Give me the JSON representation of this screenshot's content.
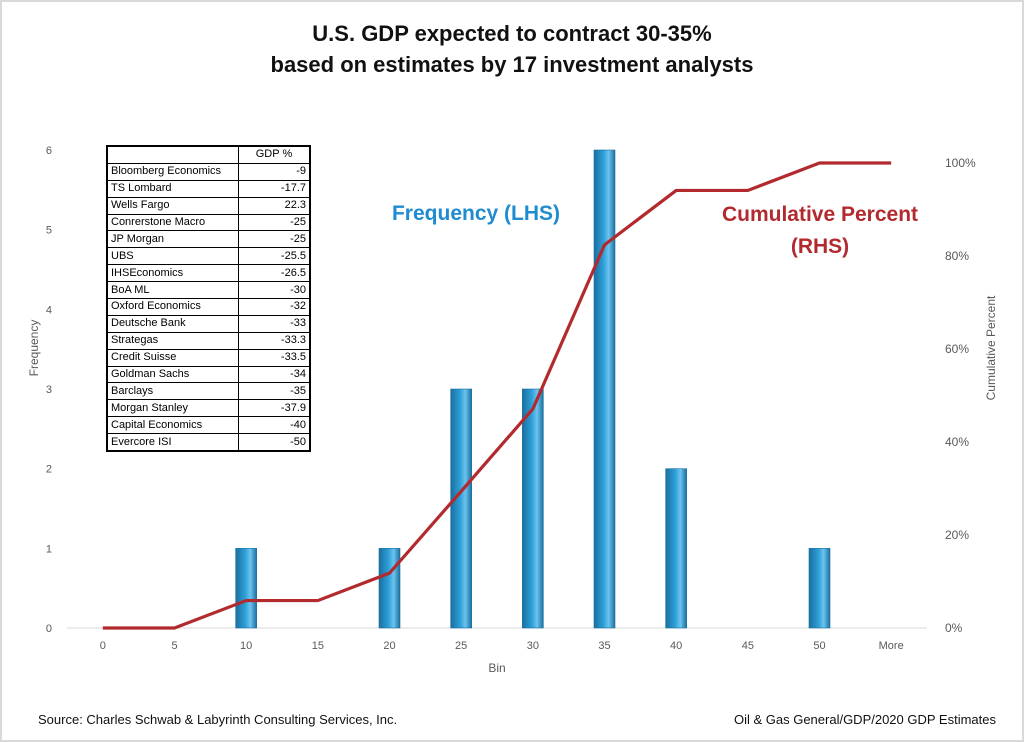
{
  "title_line1": "U.S. GDP expected to contract 30-35%",
  "title_line2": "based on estimates by 17 investment analysts",
  "annotations": {
    "frequency": "Frequency (LHS)",
    "cumulative_line1": "Cumulative Percent",
    "cumulative_line2": "(RHS)"
  },
  "colors": {
    "bar": "#2e9fd8",
    "bar_dark": "#1a6f9f",
    "line": "#b22a2e",
    "annotation_blue": "#1f8bd0"
  },
  "table": {
    "header": "GDP %",
    "rows": [
      {
        "name": "Bloomberg Economics",
        "value": "-9"
      },
      {
        "name": "TS Lombard",
        "value": "-17.7"
      },
      {
        "name": "Wells Fargo",
        "value": "22.3"
      },
      {
        "name": "Conrerstone Macro",
        "value": "-25"
      },
      {
        "name": "JP Morgan",
        "value": "-25"
      },
      {
        "name": "UBS",
        "value": "-25.5"
      },
      {
        "name": "IHSEconomics",
        "value": "-26.5"
      },
      {
        "name": "BoA ML",
        "value": "-30"
      },
      {
        "name": "Oxford Economics",
        "value": "-32"
      },
      {
        "name": "Deutsche Bank",
        "value": "-33"
      },
      {
        "name": "Strategas",
        "value": "-33.3"
      },
      {
        "name": "Credit Suisse",
        "value": "-33.5"
      },
      {
        "name": "Goldman Sachs",
        "value": "-34"
      },
      {
        "name": "Barclays",
        "value": "-35"
      },
      {
        "name": "Morgan Stanley",
        "value": "-37.9"
      },
      {
        "name": "Capital Economics",
        "value": "-40"
      },
      {
        "name": "Evercore ISI",
        "value": "-50"
      }
    ]
  },
  "footer": {
    "source": "Source: Charles Schwab & Labyrinth Consulting Services, Inc.",
    "credit": "Oil & Gas General/GDP/2020 GDP Estimates"
  },
  "chart_data": {
    "type": "bar",
    "title": "U.S. GDP expected to contract 30-35% based on estimates by 17 investment analysts",
    "categories": [
      "0",
      "5",
      "10",
      "15",
      "20",
      "25",
      "30",
      "35",
      "40",
      "45",
      "50",
      "More"
    ],
    "xlabel": "Bin",
    "ylabel": "Frequency",
    "y2label": "Cumulative Percent",
    "ylim": [
      0,
      6
    ],
    "y2lim": [
      0,
      100
    ],
    "yticks": [
      "0",
      "1",
      "2",
      "3",
      "4",
      "5",
      "6"
    ],
    "y2ticks": [
      "0%",
      "20%",
      "40%",
      "60%",
      "80%",
      "100%"
    ],
    "series": [
      {
        "name": "Frequency (LHS)",
        "type": "bar",
        "values": [
          0,
          0,
          1,
          0,
          1,
          3,
          3,
          6,
          2,
          0,
          1,
          0
        ]
      },
      {
        "name": "Cumulative Percent (RHS)",
        "type": "line",
        "axis": "right",
        "values": [
          0,
          0,
          5.9,
          5.9,
          11.8,
          29.4,
          47.1,
          82.4,
          94.1,
          94.1,
          100,
          100
        ]
      }
    ],
    "grid": false
  }
}
